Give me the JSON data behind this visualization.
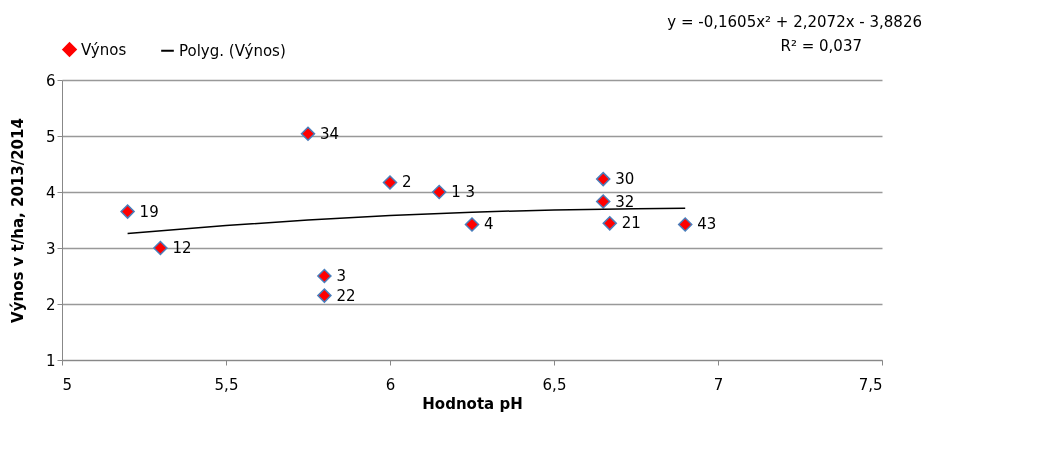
{
  "chart_data": {
    "type": "scatter",
    "xlabel": "Hodnota pH",
    "ylabel": "Výnos v t/ha, 2013/2014",
    "xlim": [
      5,
      7.5
    ],
    "xticks": [
      {
        "value": 5,
        "label": "5"
      },
      {
        "value": 5.5,
        "label": "5,5"
      },
      {
        "value": 6,
        "label": "6"
      },
      {
        "value": 6.5,
        "label": "6,5"
      },
      {
        "value": 7,
        "label": "7"
      },
      {
        "value": 7.5,
        "label": "7,5"
      }
    ],
    "ylim": [
      1,
      6
    ],
    "yticks": [
      1,
      2,
      3,
      4,
      5,
      6
    ],
    "grid": "y",
    "legend": "top left",
    "series": [
      {
        "name": "Výnos",
        "marker": "diamond",
        "color": "#ff0000",
        "x": [
          5.2,
          5.3,
          5.75,
          5.8,
          5.8,
          6.0,
          6.15,
          6.25,
          6.65,
          6.65,
          6.67,
          6.9
        ],
        "values": [
          3.65,
          3.0,
          5.04,
          2.5,
          2.15,
          4.17,
          4.0,
          3.42,
          4.23,
          3.83,
          3.44,
          3.42
        ]
      },
      {
        "name": "Polyg. (Výnos)",
        "type": "line",
        "marker": "none",
        "color": "#000000",
        "line_style": "solid",
        "x": [
          5.2,
          5.5,
          5.75,
          6.0,
          6.25,
          6.5,
          6.75,
          6.9
        ],
        "values": [
          3.26,
          3.4,
          3.5,
          3.58,
          3.64,
          3.68,
          3.7,
          3.71
        ]
      }
    ],
    "annotations": [
      "y = -0,1605x² + 2,2072x - 3,8826",
      "R² = 0,037",
      {
        "text": "19",
        "x": 5.2,
        "y": 3.65
      },
      {
        "text": "12",
        "x": 5.3,
        "y": 3.0
      },
      {
        "text": "34",
        "x": 5.75,
        "y": 5.04
      },
      {
        "text": "3",
        "x": 5.8,
        "y": 2.5
      },
      {
        "text": "22",
        "x": 5.8,
        "y": 2.15
      },
      {
        "text": "2",
        "x": 6.0,
        "y": 4.17
      },
      {
        "text": "1 3",
        "x": 6.15,
        "y": 4.0
      },
      {
        "text": "4",
        "x": 6.25,
        "y": 3.42
      },
      {
        "text": "30",
        "x": 6.65,
        "y": 4.23
      },
      {
        "text": "32",
        "x": 6.65,
        "y": 3.83
      },
      {
        "text": "21",
        "x": 6.67,
        "y": 3.44
      },
      {
        "text": "43",
        "x": 6.9,
        "y": 3.42
      }
    ]
  }
}
